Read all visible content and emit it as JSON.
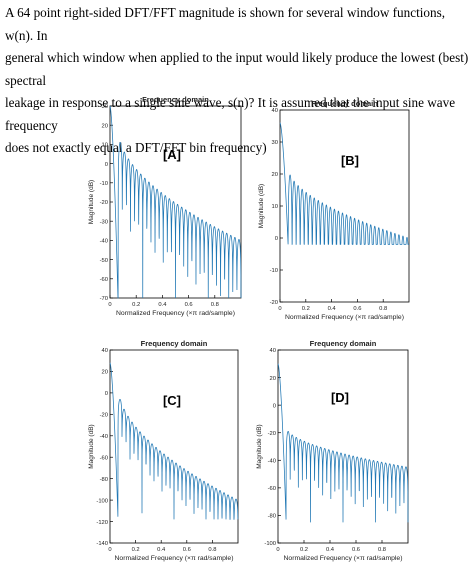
{
  "question": {
    "lines": [
      "A 64 point right-sided DFT/FFT magnitude is shown for several window functions, w(n).  In",
      "general which window when applied to the input would likely produce the lowest (best) spectral",
      "leakage in response to a single sine wave, s(n)?  It is assumed that the input sine wave frequency",
      "does not exactly equal a DFT/FFT bin frequency)"
    ]
  },
  "colors": {
    "line": "#1f77b4",
    "axis": "#000000",
    "text": "#222222"
  },
  "chart_data": [
    {
      "type": "line",
      "panel_label": "[A]",
      "title": "Frequency domain",
      "xlabel": "Normalized Frequency  (×π rad/sample)",
      "ylabel": "Magnitude (dB)",
      "xlim": [
        0,
        1
      ],
      "ylim": [
        -70,
        30
      ],
      "xticks": [
        0,
        0.2,
        0.4,
        0.6,
        0.8
      ],
      "xtick_labels": [
        "0",
        "0.2",
        "0.4",
        "0.6",
        "0.8"
      ],
      "yticks": [
        30,
        20,
        10,
        0,
        -10,
        -20,
        -30,
        -40,
        -50,
        -60,
        -70
      ],
      "ytick_labels": [
        "30",
        "20",
        "10",
        "0",
        "-10",
        "-20",
        "-30",
        "-40",
        "-50",
        "-60",
        "-70"
      ],
      "mainlobe_db": 30,
      "first_sidelobe_db": 17,
      "sidelobe_end_db": -40,
      "null_depth_db": -75,
      "null_spacing": 0.03125
    },
    {
      "type": "line",
      "panel_label": "[B]",
      "title": "Frequency domain",
      "xlabel": "Normalized Frequency  (×π rad/sample)",
      "ylabel": "Magnitude (dB)",
      "xlim": [
        0,
        1
      ],
      "ylim": [
        -20,
        40
      ],
      "xticks": [
        0,
        0.2,
        0.4,
        0.6,
        0.8
      ],
      "xtick_labels": [
        "0",
        "0.2",
        "0.4",
        "0.6",
        "0.8"
      ],
      "yticks": [
        40,
        30,
        20,
        10,
        0,
        -10,
        -20
      ],
      "ytick_labels": [
        "40",
        "30",
        "20",
        "10",
        "0",
        "-10",
        "-20"
      ],
      "mainlobe_db": 36,
      "first_sidelobe_db": 22,
      "sidelobe_end_db": 0,
      "null_depth_db": -2,
      "null_spacing": 0.03125
    },
    {
      "type": "line",
      "panel_label": "[C]",
      "title": "Frequency domain",
      "xlabel": "Normalized Frequency  (×π rad/sample)",
      "ylabel": "Magnitude (dB)",
      "xlim": [
        0,
        1
      ],
      "ylim": [
        -140,
        40
      ],
      "xticks": [
        0,
        0.2,
        0.4,
        0.6,
        0.8
      ],
      "xtick_labels": [
        "0",
        "0.2",
        "0.4",
        "0.6",
        "0.8"
      ],
      "yticks": [
        40,
        20,
        0,
        -20,
        -40,
        -60,
        -80,
        -100,
        -120,
        -140
      ],
      "ytick_labels": [
        "40",
        "20",
        "0",
        "-20",
        "-40",
        "-60",
        "-80",
        "-100",
        "-120",
        "-140"
      ],
      "mainlobe_db": 28,
      "first_sidelobe_db": 5,
      "sidelobe_end_db": -100,
      "null_depth_db": -118,
      "null_spacing": 0.03125
    },
    {
      "type": "line",
      "panel_label": "[D]",
      "title": "Frequency domain",
      "xlabel": "Normalized Frequency  (×π rad/sample)",
      "ylabel": "Magnitude (dB)",
      "xlim": [
        0,
        1
      ],
      "ylim": [
        -100,
        40
      ],
      "xticks": [
        0,
        0.2,
        0.4,
        0.6,
        0.8
      ],
      "xtick_labels": [
        "0",
        "0.2",
        "0.4",
        "0.6",
        "0.8"
      ],
      "yticks": [
        40,
        20,
        0,
        -20,
        -40,
        -60,
        -80,
        -100
      ],
      "ytick_labels": [
        "40",
        "20",
        "0",
        "-20",
        "-40",
        "-60",
        "-80",
        "-100"
      ],
      "mainlobe_db": 30,
      "first_sidelobe_db": -16,
      "sidelobe_end_db": -45,
      "null_depth_db": -85,
      "null_spacing": 0.03125
    }
  ]
}
